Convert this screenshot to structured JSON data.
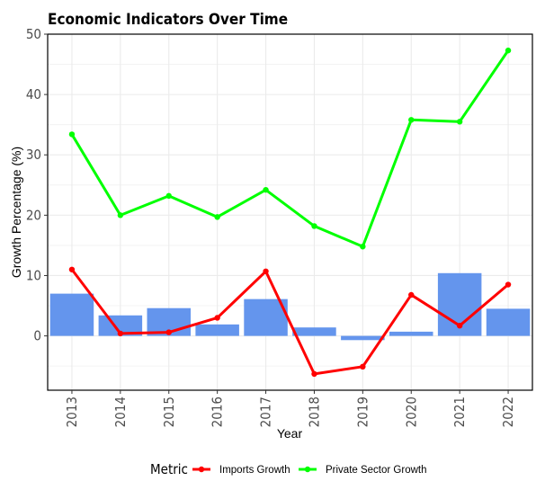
{
  "chart_data": {
    "type": "bar+line",
    "title": "Economic Indicators Over Time",
    "xlabel": "Year",
    "ylabel": "Growth Percentage (%)",
    "categories": [
      "2013",
      "2014",
      "2015",
      "2016",
      "2017",
      "2018",
      "2019",
      "2020",
      "2021",
      "2022"
    ],
    "ylim": [
      -9,
      50
    ],
    "yticks": [
      0,
      10,
      20,
      30,
      40,
      50
    ],
    "grid": true,
    "bars": {
      "color": "#6495ED",
      "values": [
        7.0,
        3.4,
        4.6,
        1.9,
        6.1,
        1.4,
        -0.7,
        0.7,
        10.4,
        4.5
      ]
    },
    "series": [
      {
        "name": "Imports Growth",
        "color": "#ff0000",
        "values": [
          11.0,
          0.4,
          0.6,
          3.0,
          10.7,
          -6.3,
          -5.1,
          6.8,
          1.7,
          8.5
        ]
      },
      {
        "name": "Private Sector Growth",
        "color": "#00ff00",
        "values": [
          33.4,
          20.0,
          23.2,
          19.7,
          24.2,
          18.2,
          14.8,
          35.8,
          35.5,
          47.3
        ]
      }
    ],
    "legend": {
      "title": "Metric",
      "position": "bottom"
    }
  }
}
